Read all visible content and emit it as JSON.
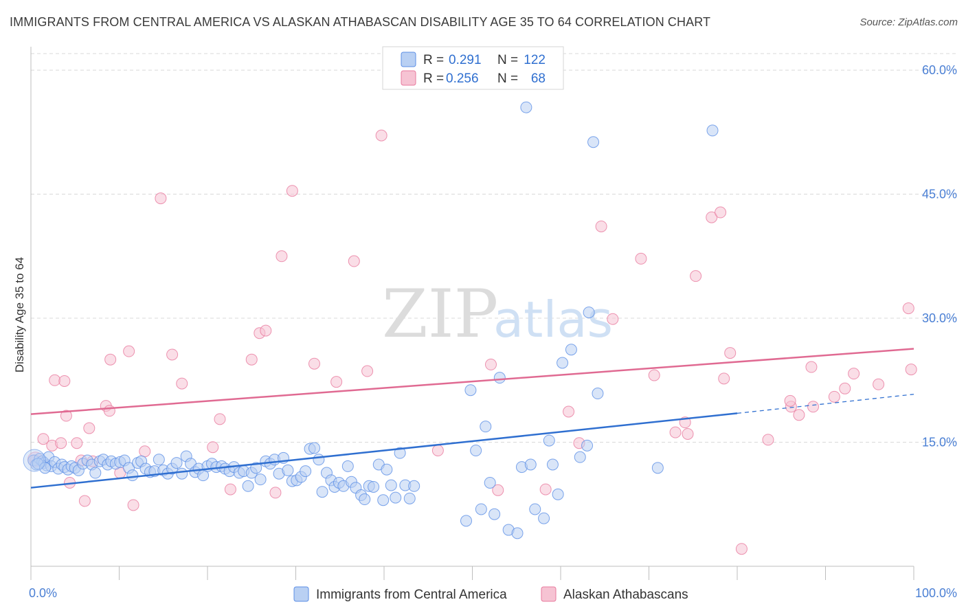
{
  "title": "IMMIGRANTS FROM CENTRAL AMERICA VS ALASKAN ATHABASCAN DISABILITY AGE 35 TO 64 CORRELATION CHART",
  "source": "Source: ZipAtlas.com",
  "watermark": {
    "zip": "ZIP",
    "atlas": "atlas"
  },
  "colors": {
    "blue": "#5b8ee6",
    "blue_fill": "#b9d0f3",
    "blue_line": "#2f6fd0",
    "pink": "#e8799d",
    "pink_fill": "#f6c3d3",
    "pink_line": "#e06a92",
    "tick_text": "#4a7fd4",
    "grid": "#d9d9d9"
  },
  "legend": {
    "rows": [
      {
        "r_label": "R =",
        "r_value": "0.291",
        "n_label": "N =",
        "n_value": "122",
        "series": "blue"
      },
      {
        "r_label": "R =",
        "r_value": "0.256",
        "n_label": "N =",
        "n_value": "68",
        "series": "pink"
      }
    ]
  },
  "chart_data": {
    "type": "scatter",
    "xlabel": "",
    "ylabel": "Disability Age 35 to 64",
    "xlim": [
      0,
      100
    ],
    "ylim": [
      0,
      62
    ],
    "x_tick_labels": [
      "0.0%",
      "100.0%"
    ],
    "y_ticks": [
      15,
      30,
      45,
      60
    ],
    "y_tick_labels": [
      "15.0%",
      "30.0%",
      "45.0%",
      "60.0%"
    ],
    "grid": true,
    "legend_position": "top-center",
    "series": [
      {
        "name": "Immigrants from Central America",
        "color": "blue",
        "trend": {
          "x0": 0,
          "y0": 9.5,
          "x1": 80,
          "y1": 18.5,
          "dashed_to_x": 100,
          "dashed_to_y": 20.8
        },
        "points": [
          [
            0.3,
            12.8
          ],
          [
            0.6,
            12.3
          ],
          [
            1,
            13
          ],
          [
            1.3,
            12.7
          ],
          [
            1.5,
            12.5
          ],
          [
            1.8,
            12.2
          ],
          [
            2,
            13.2
          ],
          [
            2.3,
            12.1
          ],
          [
            2.7,
            12.6
          ],
          [
            3.1,
            11.8
          ],
          [
            3.5,
            12.3
          ],
          [
            3.8,
            12
          ],
          [
            4.2,
            11.7
          ],
          [
            4.6,
            12.1
          ],
          [
            5,
            11.9
          ],
          [
            5.4,
            11.6
          ],
          [
            5.9,
            12.4
          ],
          [
            6.4,
            12.8
          ],
          [
            6.9,
            12.3
          ],
          [
            7.3,
            11.3
          ],
          [
            7.8,
            12.7
          ],
          [
            8.2,
            12.9
          ],
          [
            8.7,
            12.3
          ],
          [
            9.1,
            12.7
          ],
          [
            9.6,
            12.4
          ],
          [
            10.1,
            12.6
          ],
          [
            10.6,
            12.8
          ],
          [
            11.1,
            11.9
          ],
          [
            11.5,
            11
          ],
          [
            12.1,
            12.5
          ],
          [
            12.5,
            12.7
          ],
          [
            13,
            11.8
          ],
          [
            13.5,
            11.4
          ],
          [
            14,
            11.5
          ],
          [
            14.5,
            12.9
          ],
          [
            15,
            11.6
          ],
          [
            15.5,
            11.2
          ],
          [
            16,
            11.8
          ],
          [
            16.5,
            12.5
          ],
          [
            17.1,
            11.2
          ],
          [
            17.6,
            13.3
          ],
          [
            18.1,
            12.4
          ],
          [
            18.6,
            11.4
          ],
          [
            19,
            11.8
          ],
          [
            19.5,
            11
          ],
          [
            20,
            12.1
          ],
          [
            20.5,
            12.4
          ],
          [
            21,
            12
          ],
          [
            21.6,
            12.1
          ],
          [
            22,
            11.8
          ],
          [
            22.5,
            11.5
          ],
          [
            23,
            12
          ],
          [
            23.6,
            11.3
          ],
          [
            24.1,
            11.5
          ],
          [
            24.6,
            9.7
          ],
          [
            25,
            11.3
          ],
          [
            25.5,
            11.9
          ],
          [
            26,
            10.5
          ],
          [
            26.6,
            12.7
          ],
          [
            27.1,
            12.4
          ],
          [
            27.6,
            12.9
          ],
          [
            28.1,
            11.2
          ],
          [
            28.6,
            13.1
          ],
          [
            29.1,
            11.6
          ],
          [
            29.6,
            10.3
          ],
          [
            30.1,
            10.4
          ],
          [
            30.6,
            10.8
          ],
          [
            31.1,
            11.5
          ],
          [
            31.6,
            14.2
          ],
          [
            32.1,
            14.3
          ],
          [
            32.6,
            12.9
          ],
          [
            33,
            9
          ],
          [
            33.5,
            11.3
          ],
          [
            34,
            10.4
          ],
          [
            34.4,
            9.6
          ],
          [
            34.9,
            10.1
          ],
          [
            35.4,
            9.7
          ],
          [
            35.9,
            12.1
          ],
          [
            36.3,
            10.2
          ],
          [
            36.8,
            9.5
          ],
          [
            37.4,
            8.6
          ],
          [
            37.8,
            8.1
          ],
          [
            38.3,
            9.7
          ],
          [
            38.8,
            9.6
          ],
          [
            39.4,
            12.3
          ],
          [
            39.9,
            8
          ],
          [
            40.3,
            11.7
          ],
          [
            40.8,
            9.8
          ],
          [
            41.3,
            8.3
          ],
          [
            41.8,
            13.7
          ],
          [
            42.4,
            9.8
          ],
          [
            42.9,
            8.2
          ],
          [
            43.4,
            9.7
          ],
          [
            49.3,
            5.5
          ],
          [
            49.8,
            21.3
          ],
          [
            50.4,
            14
          ],
          [
            51,
            6.9
          ],
          [
            51.5,
            16.9
          ],
          [
            52,
            10.1
          ],
          [
            52.5,
            6.3
          ],
          [
            53.1,
            22.8
          ],
          [
            54.1,
            4.4
          ],
          [
            55.1,
            4
          ],
          [
            55.6,
            12
          ],
          [
            56.1,
            55.5
          ],
          [
            56.6,
            12.3
          ],
          [
            57.1,
            6.9
          ],
          [
            58.1,
            5.8
          ],
          [
            58.7,
            15.2
          ],
          [
            59.1,
            12.3
          ],
          [
            59.7,
            8.7
          ],
          [
            60.2,
            24.6
          ],
          [
            61.2,
            26.2
          ],
          [
            62.2,
            13.2
          ],
          [
            63.2,
            30.7
          ],
          [
            63.7,
            51.3
          ],
          [
            64.2,
            20.9
          ],
          [
            71,
            11.9
          ],
          [
            77.2,
            52.7
          ],
          [
            63,
            14.6
          ],
          [
            0.8,
            12.4
          ],
          [
            1.6,
            11.9
          ]
        ]
      },
      {
        "name": "Alaskan Athabascans",
        "color": "pink",
        "trend": {
          "x0": 0,
          "y0": 18.4,
          "x1": 100,
          "y1": 26.3
        },
        "points": [
          [
            0.5,
            12.8
          ],
          [
            1.4,
            15.4
          ],
          [
            2.4,
            14.6
          ],
          [
            2.7,
            22.5
          ],
          [
            3.4,
            14.9
          ],
          [
            3.8,
            22.4
          ],
          [
            4,
            18.2
          ],
          [
            4.4,
            10.1
          ],
          [
            5.2,
            14.9
          ],
          [
            5.7,
            12.8
          ],
          [
            6.1,
            7.9
          ],
          [
            6.6,
            16.7
          ],
          [
            7,
            12.7
          ],
          [
            8.5,
            19.4
          ],
          [
            8.9,
            18.8
          ],
          [
            9,
            25
          ],
          [
            10.1,
            11.3
          ],
          [
            11.1,
            26
          ],
          [
            11.6,
            7.4
          ],
          [
            12.9,
            13.9
          ],
          [
            14.7,
            44.5
          ],
          [
            16,
            25.6
          ],
          [
            17.1,
            22.1
          ],
          [
            20.6,
            14.4
          ],
          [
            21.4,
            17.8
          ],
          [
            22.6,
            9.3
          ],
          [
            25,
            25
          ],
          [
            25.9,
            28.2
          ],
          [
            26.6,
            28.5
          ],
          [
            27.7,
            8.9
          ],
          [
            28.4,
            37.5
          ],
          [
            29.6,
            45.4
          ],
          [
            32.1,
            24.5
          ],
          [
            34.6,
            22.3
          ],
          [
            36.6,
            36.9
          ],
          [
            38.1,
            23.6
          ],
          [
            39.7,
            52.1
          ],
          [
            46.1,
            14
          ],
          [
            52.1,
            24.4
          ],
          [
            52.9,
            9.2
          ],
          [
            58.3,
            9.3
          ],
          [
            60.9,
            18.7
          ],
          [
            62.1,
            14.9
          ],
          [
            64.6,
            41.1
          ],
          [
            65.9,
            29.9
          ],
          [
            69.1,
            37.2
          ],
          [
            70.6,
            23.1
          ],
          [
            73,
            16.2
          ],
          [
            74.1,
            17.4
          ],
          [
            74.4,
            16
          ],
          [
            75.3,
            35.1
          ],
          [
            77.1,
            42.2
          ],
          [
            78.1,
            42.8
          ],
          [
            78.5,
            22.7
          ],
          [
            79.2,
            25.8
          ],
          [
            80.5,
            2.1
          ],
          [
            83.5,
            15.3
          ],
          [
            86.1,
            19.3
          ],
          [
            87,
            18.3
          ],
          [
            88.4,
            24.1
          ],
          [
            88.6,
            19.3
          ],
          [
            91,
            20.5
          ],
          [
            92.2,
            21.5
          ],
          [
            93.2,
            23.3
          ],
          [
            99.4,
            31.2
          ],
          [
            99.7,
            23.8
          ],
          [
            86,
            20
          ],
          [
            96,
            22
          ]
        ]
      }
    ]
  },
  "bottom_legend": {
    "items": [
      {
        "label": "Immigrants from Central America",
        "series": "blue"
      },
      {
        "label": "Alaskan Athabascans",
        "series": "pink"
      }
    ]
  }
}
